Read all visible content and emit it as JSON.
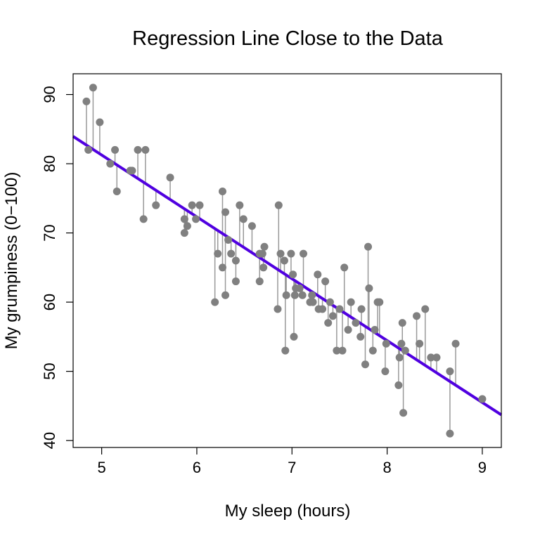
{
  "chart_data": {
    "type": "scatter",
    "title": "Regression Line Close to the Data",
    "xlabel": "My sleep (hours)",
    "ylabel": "My grumpiness (0−100)",
    "xlim": [
      4.7,
      9.2
    ],
    "ylim": [
      39,
      93
    ],
    "xticks": [
      5,
      6,
      7,
      8,
      9
    ],
    "yticks": [
      40,
      50,
      60,
      70,
      80,
      90
    ],
    "grid": false,
    "point_color": "#808080",
    "residual_color": "#999999",
    "line_color": "#5000e0",
    "regression": {
      "intercept": 125.96,
      "slope": -8.94
    },
    "points": [
      [
        4.84,
        89
      ],
      [
        4.86,
        82
      ],
      [
        4.91,
        91
      ],
      [
        4.98,
        86
      ],
      [
        5.09,
        80
      ],
      [
        5.14,
        82
      ],
      [
        5.16,
        76
      ],
      [
        5.3,
        79
      ],
      [
        5.32,
        79
      ],
      [
        5.38,
        82
      ],
      [
        5.44,
        72
      ],
      [
        5.46,
        82
      ],
      [
        5.57,
        74
      ],
      [
        5.72,
        78
      ],
      [
        5.87,
        72
      ],
      [
        5.87,
        70
      ],
      [
        5.9,
        71
      ],
      [
        5.95,
        74
      ],
      [
        5.99,
        72
      ],
      [
        6.03,
        74
      ],
      [
        6.19,
        60
      ],
      [
        6.22,
        67
      ],
      [
        6.27,
        76
      ],
      [
        6.27,
        65
      ],
      [
        6.3,
        73
      ],
      [
        6.3,
        61
      ],
      [
        6.33,
        69
      ],
      [
        6.36,
        67
      ],
      [
        6.41,
        66
      ],
      [
        6.41,
        63
      ],
      [
        6.45,
        74
      ],
      [
        6.49,
        72
      ],
      [
        6.58,
        71
      ],
      [
        6.66,
        67
      ],
      [
        6.66,
        63
      ],
      [
        6.69,
        67
      ],
      [
        6.7,
        65
      ],
      [
        6.71,
        68
      ],
      [
        6.85,
        59
      ],
      [
        6.86,
        74
      ],
      [
        6.88,
        67
      ],
      [
        6.92,
        66
      ],
      [
        6.93,
        53
      ],
      [
        6.94,
        61
      ],
      [
        6.99,
        67
      ],
      [
        7.01,
        64
      ],
      [
        7.02,
        55
      ],
      [
        7.03,
        61
      ],
      [
        7.04,
        62
      ],
      [
        7.08,
        62
      ],
      [
        7.12,
        67
      ],
      [
        7.11,
        61
      ],
      [
        7.19,
        60
      ],
      [
        7.21,
        61
      ],
      [
        7.22,
        60
      ],
      [
        7.27,
        64
      ],
      [
        7.28,
        59
      ],
      [
        7.32,
        59
      ],
      [
        7.35,
        63
      ],
      [
        7.38,
        57
      ],
      [
        7.4,
        60
      ],
      [
        7.43,
        58
      ],
      [
        7.47,
        53
      ],
      [
        7.5,
        59
      ],
      [
        7.53,
        53
      ],
      [
        7.55,
        65
      ],
      [
        7.59,
        56
      ],
      [
        7.62,
        60
      ],
      [
        7.67,
        57
      ],
      [
        7.72,
        55
      ],
      [
        7.73,
        59
      ],
      [
        7.77,
        51
      ],
      [
        7.8,
        68
      ],
      [
        7.81,
        62
      ],
      [
        7.85,
        53
      ],
      [
        7.87,
        56
      ],
      [
        7.9,
        60
      ],
      [
        7.92,
        60
      ],
      [
        7.98,
        50
      ],
      [
        7.99,
        54
      ],
      [
        8.12,
        48
      ],
      [
        8.13,
        52
      ],
      [
        8.15,
        54
      ],
      [
        8.16,
        57
      ],
      [
        8.17,
        44
      ],
      [
        8.19,
        53
      ],
      [
        8.31,
        58
      ],
      [
        8.34,
        54
      ],
      [
        8.4,
        59
      ],
      [
        8.46,
        52
      ],
      [
        8.52,
        52
      ],
      [
        8.66,
        50
      ],
      [
        8.66,
        41
      ],
      [
        8.72,
        54
      ],
      [
        9.0,
        46
      ]
    ]
  }
}
